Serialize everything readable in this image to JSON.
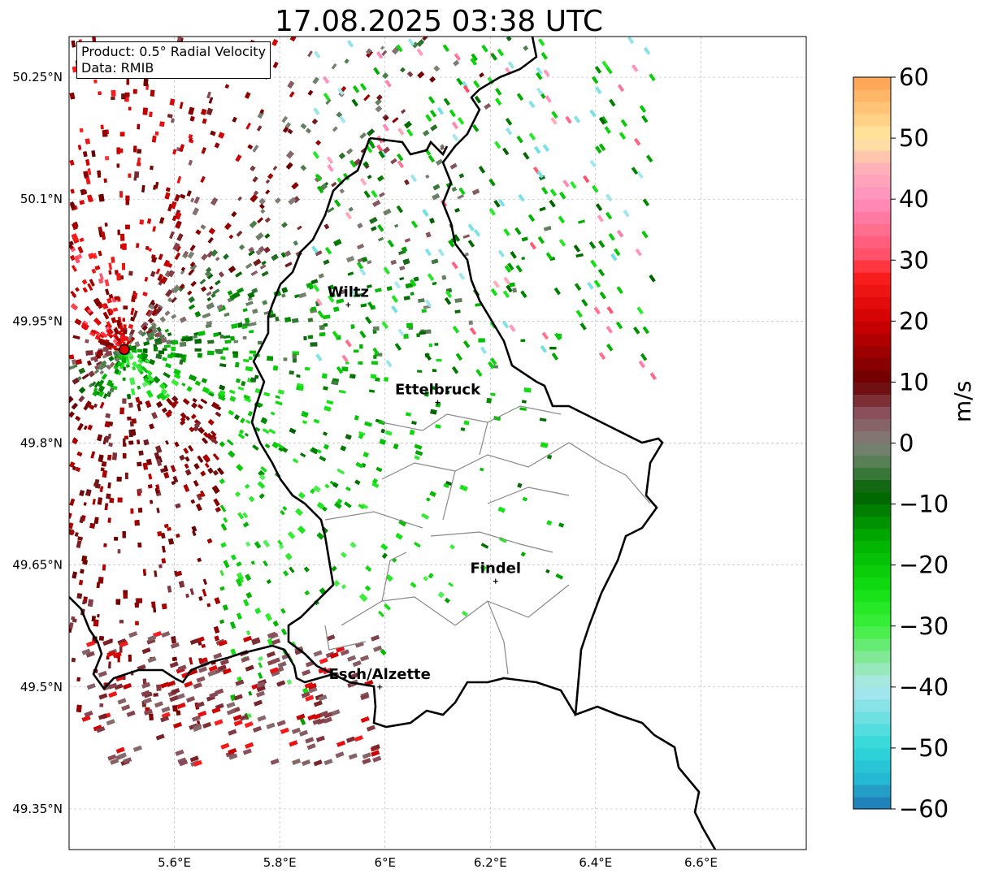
{
  "title": "17.08.2025 03:38 UTC",
  "info": {
    "product": "Product: 0.5° Radial Velocity",
    "data": "Data: RMIB"
  },
  "map": {
    "extent": {
      "lon_min": 5.4,
      "lon_max": 6.8,
      "lat_min": 49.3,
      "lat_max": 50.3
    },
    "lon_ticks": [
      {
        "value": 5.6,
        "label": "5.6°E"
      },
      {
        "value": 5.8,
        "label": "5.8°E"
      },
      {
        "value": 6.0,
        "label": "6°E"
      },
      {
        "value": 6.2,
        "label": "6.2°E"
      },
      {
        "value": 6.4,
        "label": "6.4°E"
      },
      {
        "value": 6.6,
        "label": "6.6°E"
      }
    ],
    "lat_ticks": [
      {
        "value": 50.25,
        "label": "50.25°N"
      },
      {
        "value": 50.1,
        "label": "50.1°N"
      },
      {
        "value": 49.95,
        "label": "49.95°N"
      },
      {
        "value": 49.8,
        "label": "49.8°N"
      },
      {
        "value": 49.65,
        "label": "49.65°N"
      },
      {
        "value": 49.5,
        "label": "49.5°N"
      },
      {
        "value": 49.35,
        "label": "49.35°N"
      }
    ],
    "radar_site": {
      "lon": 5.505,
      "lat": 49.915
    },
    "cities": [
      {
        "name": "Wiltz",
        "lon": 5.93,
        "lat": 49.97
      },
      {
        "name": "Ettelbruck",
        "lon": 6.1,
        "lat": 49.85
      },
      {
        "name": "Findel",
        "lon": 6.21,
        "lat": 49.63
      },
      {
        "name": "Esch/Alzette",
        "lon": 5.99,
        "lat": 49.5
      }
    ]
  },
  "colorbar": {
    "unit": "m/s",
    "min": -60,
    "max": 60,
    "ticks": [
      {
        "value": 60,
        "label": "60"
      },
      {
        "value": 50,
        "label": "50"
      },
      {
        "value": 40,
        "label": "40"
      },
      {
        "value": 30,
        "label": "30"
      },
      {
        "value": 20,
        "label": "20"
      },
      {
        "value": 10,
        "label": "10"
      },
      {
        "value": 0,
        "label": "0"
      },
      {
        "value": -10,
        "label": "−10"
      },
      {
        "value": -20,
        "label": "−20"
      },
      {
        "value": -30,
        "label": "−30"
      },
      {
        "value": -40,
        "label": "−40"
      },
      {
        "value": -50,
        "label": "−50"
      },
      {
        "value": -60,
        "label": "−60"
      }
    ],
    "stops": [
      {
        "value": -60,
        "color": "#1f77b4"
      },
      {
        "value": -55,
        "color": "#25b8d4"
      },
      {
        "value": -50,
        "color": "#2ed8d8"
      },
      {
        "value": -40,
        "color": "#aee8ee"
      },
      {
        "value": -36,
        "color": "#8fe8a8"
      },
      {
        "value": -30,
        "color": "#3cf03c"
      },
      {
        "value": -24,
        "color": "#11e011"
      },
      {
        "value": -16,
        "color": "#00b000"
      },
      {
        "value": -8,
        "color": "#006000"
      },
      {
        "value": -4,
        "color": "#4a7f4a"
      },
      {
        "value": 0,
        "color": "#808078"
      },
      {
        "value": 5,
        "color": "#8a4f5a"
      },
      {
        "value": 10,
        "color": "#6a0000"
      },
      {
        "value": 20,
        "color": "#d00000"
      },
      {
        "value": 28,
        "color": "#ff2020"
      },
      {
        "value": 30,
        "color": "#ff4a5f"
      },
      {
        "value": 40,
        "color": "#ff8fbf"
      },
      {
        "value": 45,
        "color": "#ffb0b8"
      },
      {
        "value": 50,
        "color": "#ffe8a0"
      },
      {
        "value": 60,
        "color": "#ffa050"
      }
    ]
  }
}
